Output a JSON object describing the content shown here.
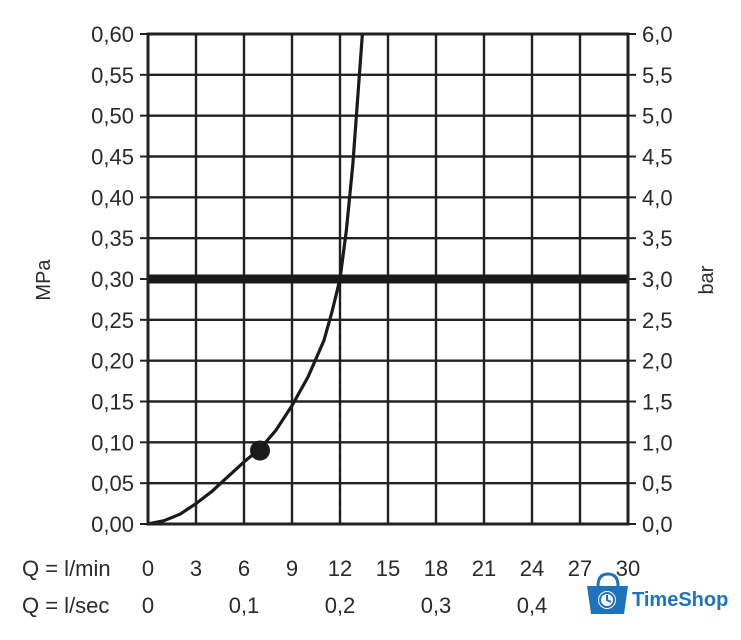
{
  "chart_data": {
    "type": "line",
    "ylabel_left": "MPa",
    "ylabel_right": "bar",
    "x_row_labels": [
      "Q = l/min",
      "Q = l/sec"
    ],
    "x_ticks_lmin": [
      "0",
      "3",
      "6",
      "9",
      "12",
      "15",
      "18",
      "21",
      "24",
      "27",
      "30"
    ],
    "x_ticks_lsec": [
      "0",
      "0,1",
      "0,2",
      "0,3",
      "0,4"
    ],
    "x_ticks_lsec_values": [
      0,
      6,
      12,
      18,
      24
    ],
    "y_ticks_left": [
      "0,00",
      "0,05",
      "0,10",
      "0,15",
      "0,20",
      "0,25",
      "0,30",
      "0,35",
      "0,40",
      "0,45",
      "0,50",
      "0,55",
      "0,60"
    ],
    "y_ticks_right": [
      "0,0",
      "0,5",
      "1,0",
      "1,5",
      "2,0",
      "2,5",
      "3,0",
      "3,5",
      "4,0",
      "4,5",
      "5,0",
      "5,5",
      "6,0"
    ],
    "xlim": [
      0,
      30
    ],
    "ylim": [
      0,
      0.6
    ],
    "grid": true,
    "series": [
      {
        "x": [
          0,
          1,
          2,
          3,
          4,
          5,
          6,
          7,
          8,
          9,
          10,
          11,
          11.5,
          12,
          12.4,
          12.8,
          13.1,
          13.4
        ],
        "y": [
          0,
          0.004,
          0.012,
          0.025,
          0.04,
          0.058,
          0.076,
          0.092,
          0.115,
          0.145,
          0.18,
          0.225,
          0.26,
          0.3,
          0.36,
          0.44,
          0.52,
          0.6
        ]
      }
    ],
    "reference_line": {
      "y": 0.3
    },
    "marker": {
      "x": 7,
      "y": 0.09
    },
    "dashed_drop": {
      "x": 12,
      "y": 0.3
    }
  },
  "watermark": {
    "text": "TimeShop",
    "icon": "shopping-bag-clock-icon",
    "color": "#1e73be"
  }
}
